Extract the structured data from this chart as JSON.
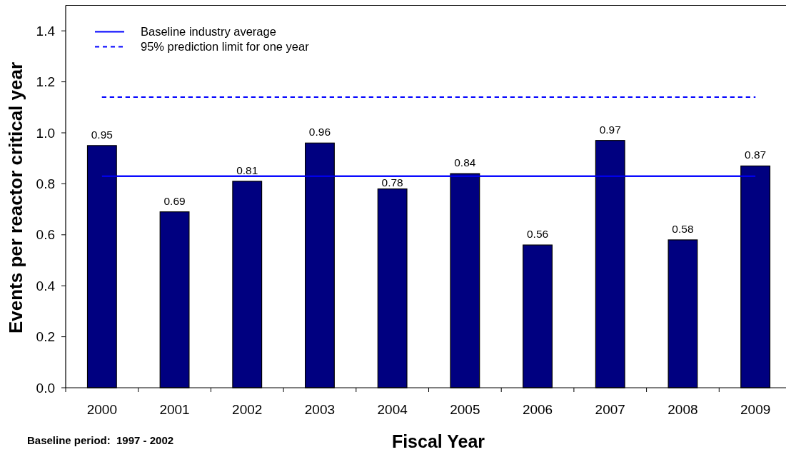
{
  "chart_data": {
    "type": "bar",
    "xlabel": "Fiscal Year",
    "ylabel": "Events per reactor critical year",
    "categories": [
      "2000",
      "2001",
      "2002",
      "2003",
      "2004",
      "2005",
      "2006",
      "2007",
      "2008",
      "2009"
    ],
    "values": [
      0.95,
      0.69,
      0.81,
      0.96,
      0.78,
      0.84,
      0.56,
      0.97,
      0.58,
      0.87
    ],
    "color": "#000080",
    "ylim": [
      0,
      1.5
    ],
    "yticks": [
      {
        "value": 0,
        "label": "0.0"
      },
      0.2,
      0.4,
      0.6,
      0.8,
      {
        "value": 1,
        "label": "1.0"
      },
      1.2,
      1.4
    ],
    "data_labels": true,
    "legend": "top left",
    "ref_lines": [
      {
        "axis": "y",
        "value": 0.83,
        "label": "Baseline industry average",
        "color": "#0000ff",
        "line_style": "solid"
      },
      {
        "axis": "y",
        "value": 1.14,
        "label": "95% prediction limit for one year",
        "color": "#0000ff",
        "line_style": "dashed"
      }
    ],
    "annotations": [
      "Baseline period:  1997 - 2002"
    ]
  }
}
